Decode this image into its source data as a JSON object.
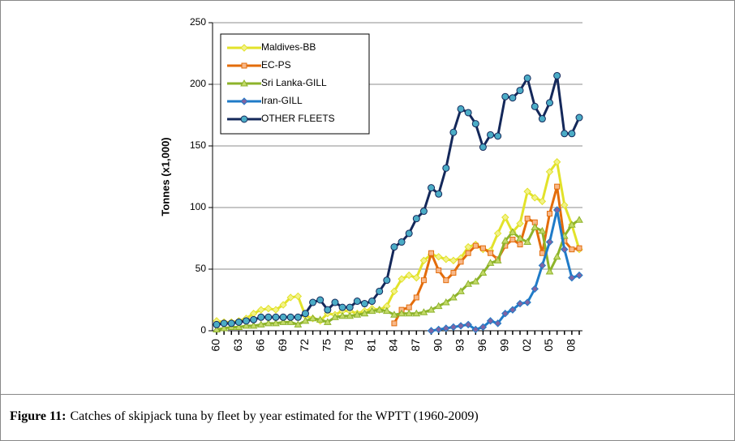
{
  "chart_data": {
    "type": "line",
    "y_label": "Tonnes (x1,000)",
    "categories": [
      "60",
      null,
      null,
      "63",
      null,
      null,
      "66",
      null,
      null,
      "69",
      null,
      null,
      "72",
      null,
      null,
      "75",
      null,
      null,
      "78",
      null,
      null,
      "81",
      null,
      null,
      "84",
      null,
      null,
      "87",
      null,
      null,
      "90",
      null,
      null,
      "93",
      null,
      null,
      "96",
      null,
      null,
      "99",
      null,
      null,
      "02",
      null,
      null,
      "05",
      null,
      null,
      "08",
      null
    ],
    "ylim": [
      0,
      250
    ],
    "yticks": [
      0,
      50,
      100,
      150,
      200,
      250
    ],
    "grid": true,
    "legend": "upper-left",
    "series": [
      {
        "name": "Maldives-BB",
        "color": "#e2e22a",
        "marker": "diamond",
        "marker_color": "#f2f28a",
        "values": [
          8,
          7,
          7,
          8,
          10,
          14,
          17,
          18,
          17,
          21,
          27,
          28,
          12,
          10,
          8,
          14,
          13,
          16,
          16,
          14,
          16,
          18,
          17,
          20,
          32,
          42,
          45,
          43,
          57,
          62,
          60,
          58,
          57,
          59,
          68,
          70,
          66,
          65,
          79,
          92,
          80,
          87,
          113,
          108,
          105,
          129,
          137,
          102,
          86,
          66
        ]
      },
      {
        "name": "EC-PS",
        "color": "#e36c0a",
        "marker": "square",
        "marker_color": "#f7b88a",
        "values": [
          null,
          null,
          null,
          null,
          null,
          null,
          null,
          null,
          null,
          null,
          null,
          null,
          null,
          null,
          null,
          null,
          null,
          null,
          null,
          null,
          null,
          null,
          null,
          null,
          6,
          17,
          19,
          27,
          41,
          63,
          49,
          41,
          47,
          56,
          63,
          69,
          67,
          63,
          58,
          69,
          74,
          70,
          91,
          88,
          63,
          95,
          117,
          73,
          66,
          67
        ]
      },
      {
        "name": "Sri Lanka-GILL",
        "color": "#8db32a",
        "marker": "triangle",
        "marker_color": "#c3d96a",
        "values": [
          1,
          2,
          3,
          3,
          4,
          4,
          5,
          6,
          6,
          7,
          7,
          5,
          8,
          10,
          9,
          7,
          11,
          12,
          12,
          13,
          14,
          16,
          17,
          16,
          13,
          14,
          14,
          14,
          15,
          17,
          20,
          23,
          27,
          32,
          38,
          40,
          47,
          55,
          57,
          73,
          80,
          75,
          72,
          84,
          81,
          48,
          60,
          77,
          86,
          90
        ]
      },
      {
        "name": "Iran-GILL",
        "color": "#1f7bc8",
        "marker": "diamond",
        "marker_color": "#8064a2",
        "values": [
          null,
          null,
          null,
          null,
          null,
          null,
          null,
          null,
          null,
          null,
          null,
          null,
          null,
          null,
          null,
          null,
          null,
          null,
          null,
          null,
          null,
          null,
          null,
          null,
          null,
          null,
          null,
          null,
          null,
          0,
          1,
          2,
          3,
          4,
          5,
          1,
          3,
          8,
          6,
          14,
          17,
          22,
          23,
          34,
          53,
          72,
          98,
          66,
          43,
          45
        ]
      },
      {
        "name": "OTHER FLEETS",
        "color": "#14285a",
        "marker": "circle",
        "marker_color": "#4bacc6",
        "values": [
          5,
          6,
          6,
          7,
          8,
          9,
          11,
          11,
          11,
          11,
          11,
          11,
          14,
          23,
          25,
          17,
          23,
          19,
          19,
          24,
          22,
          24,
          32,
          41,
          68,
          72,
          79,
          91,
          97,
          116,
          111,
          132,
          161,
          180,
          177,
          168,
          149,
          159,
          158,
          190,
          189,
          195,
          205,
          182,
          172,
          185,
          207,
          160,
          160,
          173
        ]
      }
    ]
  },
  "caption": {
    "label": "Figure 11:",
    "text": "Catches of skipjack tuna by fleet by year estimated for the WPTT (1960-2009)"
  }
}
